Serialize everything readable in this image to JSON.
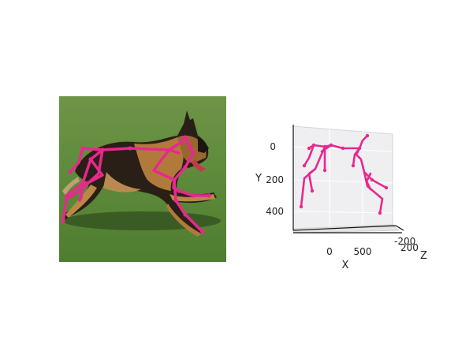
{
  "figure": {
    "photo": {
      "subject": "German Shepherd dog running on grass",
      "overlay": "2D keypoint skeleton"
    },
    "plot3d": {
      "y_axis_label": "Y",
      "y_ticks": [
        "0",
        "200",
        "400"
      ],
      "x_axis_label": "X",
      "x_ticks": [
        "0",
        "500"
      ],
      "z_axis_label": "Z",
      "z_ticks": [
        "-200",
        "200"
      ]
    }
  },
  "colors": {
    "skeleton": "#e8288f",
    "grass": "#5b8a3a",
    "pane": "#efeff2"
  }
}
